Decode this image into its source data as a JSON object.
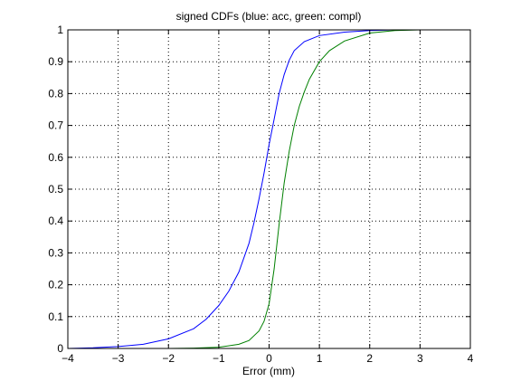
{
  "chart_data": {
    "type": "line",
    "title": "signed CDFs (blue: acc, green: compl)",
    "xlabel": "Error (mm)",
    "ylabel": "",
    "xlim": [
      -4,
      4
    ],
    "ylim": [
      0,
      1
    ],
    "x_ticks": [
      -4,
      -3,
      -2,
      -1,
      0,
      1,
      2,
      3,
      4
    ],
    "y_ticks": [
      0,
      0.1,
      0.2,
      0.3,
      0.4,
      0.5,
      0.6,
      0.7,
      0.8,
      0.9,
      1
    ],
    "x_tick_labels": [
      "−4",
      "−3",
      "−2",
      "−1",
      "0",
      "1",
      "2",
      "3",
      "4"
    ],
    "y_tick_labels": [
      "0",
      "0.1",
      "0.2",
      "0.3",
      "0.4",
      "0.5",
      "0.6",
      "0.7",
      "0.8",
      "0.9",
      "1"
    ],
    "grid": true,
    "legend": "none",
    "series": [
      {
        "color": "#0000ff",
        "points": [
          [
            -4.0,
            0.0
          ],
          [
            -3.5,
            0.002
          ],
          [
            -3.0,
            0.006
          ],
          [
            -2.5,
            0.013
          ],
          [
            -2.0,
            0.03
          ],
          [
            -1.5,
            0.062
          ],
          [
            -1.25,
            0.092
          ],
          [
            -1.0,
            0.135
          ],
          [
            -0.8,
            0.18
          ],
          [
            -0.6,
            0.24
          ],
          [
            -0.4,
            0.33
          ],
          [
            -0.3,
            0.395
          ],
          [
            -0.2,
            0.47
          ],
          [
            -0.1,
            0.55
          ],
          [
            0.0,
            0.64
          ],
          [
            0.1,
            0.72
          ],
          [
            0.2,
            0.8
          ],
          [
            0.3,
            0.86
          ],
          [
            0.4,
            0.905
          ],
          [
            0.5,
            0.935
          ],
          [
            0.7,
            0.963
          ],
          [
            1.0,
            0.982
          ],
          [
            1.5,
            0.993
          ],
          [
            2.0,
            0.998
          ],
          [
            2.5,
            1.0
          ],
          [
            4.0,
            1.0
          ]
        ]
      },
      {
        "color": "#008000",
        "points": [
          [
            -4.0,
            0.0
          ],
          [
            -2.0,
            0.0
          ],
          [
            -1.5,
            0.001
          ],
          [
            -1.0,
            0.004
          ],
          [
            -0.6,
            0.013
          ],
          [
            -0.4,
            0.025
          ],
          [
            -0.2,
            0.055
          ],
          [
            -0.1,
            0.085
          ],
          [
            0.0,
            0.14
          ],
          [
            0.1,
            0.25
          ],
          [
            0.2,
            0.39
          ],
          [
            0.3,
            0.52
          ],
          [
            0.4,
            0.62
          ],
          [
            0.5,
            0.7
          ],
          [
            0.6,
            0.76
          ],
          [
            0.7,
            0.805
          ],
          [
            0.8,
            0.845
          ],
          [
            1.0,
            0.9
          ],
          [
            1.2,
            0.935
          ],
          [
            1.5,
            0.965
          ],
          [
            2.0,
            0.99
          ],
          [
            2.5,
            0.998
          ],
          [
            3.0,
            1.0
          ],
          [
            4.0,
            1.0
          ]
        ]
      }
    ]
  }
}
